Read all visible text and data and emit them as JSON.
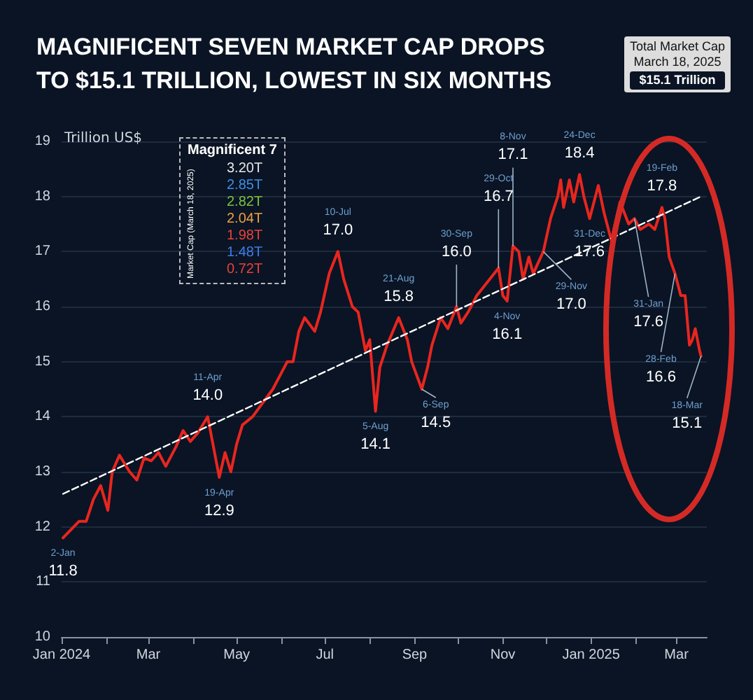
{
  "chart_data": {
    "type": "line",
    "title": "MAGNIFICENT SEVEN MARKET CAP DROPS\nTO $15.1 TRILLION, LOWEST IN SIX MONTHS",
    "ylabel": "Trillion US$",
    "xlim": [
      "2024-01-01",
      "2025-03-22"
    ],
    "xticks": [
      {
        "value": "2024-01-01",
        "label": "Jan 2024"
      },
      {
        "value": "2024-02-01",
        "label": null
      },
      {
        "value": "2024-03-01",
        "label": "Mar"
      },
      {
        "value": "2024-04-01",
        "label": null
      },
      {
        "value": "2024-05-01",
        "label": "May"
      },
      {
        "value": "2024-06-01",
        "label": null
      },
      {
        "value": "2024-07-01",
        "label": "Jul"
      },
      {
        "value": "2024-08-01",
        "label": null
      },
      {
        "value": "2024-09-01",
        "label": "Sep"
      },
      {
        "value": "2024-10-01",
        "label": null
      },
      {
        "value": "2024-11-01",
        "label": "Nov"
      },
      {
        "value": "2024-12-01",
        "label": null
      },
      {
        "value": "2025-01-01",
        "label": "Jan 2025"
      },
      {
        "value": "2025-02-01",
        "label": null
      },
      {
        "value": "2025-03-01",
        "label": "Mar"
      }
    ],
    "ylim": [
      10,
      19
    ],
    "yticks": [
      10,
      11,
      12,
      13,
      14,
      15,
      16,
      17,
      18,
      19
    ],
    "grid": "y",
    "marker": "none",
    "series": [
      {
        "color": "#e8261f",
        "line_style": "solid",
        "x": [
          "2024-01-02",
          "2024-01-13",
          "2024-01-18",
          "2024-01-23",
          "2024-01-28",
          "2024-02-02",
          "2024-02-05",
          "2024-02-10",
          "2024-02-17",
          "2024-02-22",
          "2024-02-27",
          "2024-03-03",
          "2024-03-08",
          "2024-03-13",
          "2024-03-20",
          "2024-03-25",
          "2024-03-30",
          "2024-04-04",
          "2024-04-11",
          "2024-04-19",
          "2024-04-23",
          "2024-04-27",
          "2024-05-01",
          "2024-05-05",
          "2024-05-12",
          "2024-05-19",
          "2024-05-26",
          "2024-05-31",
          "2024-06-05",
          "2024-06-09",
          "2024-06-13",
          "2024-06-17",
          "2024-06-24",
          "2024-06-28",
          "2024-07-04",
          "2024-07-10",
          "2024-07-14",
          "2024-07-20",
          "2024-07-24",
          "2024-07-29",
          "2024-08-01",
          "2024-08-05",
          "2024-08-08",
          "2024-08-13",
          "2024-08-21",
          "2024-08-27",
          "2024-08-30",
          "2024-09-06",
          "2024-09-10",
          "2024-09-13",
          "2024-09-19",
          "2024-09-24",
          "2024-09-30",
          "2024-10-03",
          "2024-10-08",
          "2024-10-14",
          "2024-10-20",
          "2024-10-29",
          "2024-11-01",
          "2024-11-04",
          "2024-11-08",
          "2024-11-12",
          "2024-11-15",
          "2024-11-19",
          "2024-11-22",
          "2024-11-29",
          "2024-12-04",
          "2024-12-09",
          "2024-12-11",
          "2024-12-13",
          "2024-12-17",
          "2024-12-20",
          "2024-12-24",
          "2024-12-27",
          "2024-12-31",
          "2025-01-06",
          "2025-01-10",
          "2025-01-15",
          "2025-01-21",
          "2025-01-27",
          "2025-01-31",
          "2025-02-04",
          "2025-02-10",
          "2025-02-14",
          "2025-02-19",
          "2025-02-21",
          "2025-02-24",
          "2025-02-28",
          "2025-03-04",
          "2025-03-07",
          "2025-03-10",
          "2025-03-12",
          "2025-03-14",
          "2025-03-17",
          "2025-03-18"
        ],
        "values": [
          11.8,
          12.1,
          12.1,
          12.5,
          12.75,
          12.3,
          13.0,
          13.3,
          13.0,
          12.85,
          13.25,
          13.2,
          13.35,
          13.1,
          13.45,
          13.75,
          13.55,
          13.7,
          14.0,
          12.9,
          13.35,
          13.0,
          13.5,
          13.85,
          14.0,
          14.25,
          14.5,
          14.75,
          15.0,
          15.0,
          15.55,
          15.8,
          15.55,
          15.9,
          16.6,
          17.0,
          16.5,
          16.0,
          15.9,
          15.2,
          15.4,
          14.1,
          14.9,
          15.3,
          15.8,
          15.4,
          15.0,
          14.5,
          14.9,
          15.3,
          15.8,
          15.6,
          16.0,
          15.7,
          15.9,
          16.2,
          16.4,
          16.7,
          16.2,
          16.1,
          17.1,
          17.0,
          16.5,
          16.9,
          16.6,
          17.0,
          17.6,
          18.0,
          18.3,
          17.8,
          18.3,
          17.9,
          18.4,
          18.0,
          17.6,
          18.2,
          17.7,
          17.2,
          17.9,
          17.5,
          17.6,
          17.4,
          17.5,
          17.4,
          17.8,
          17.6,
          16.9,
          16.6,
          16.2,
          16.2,
          15.3,
          15.4,
          15.6,
          15.2,
          15.1
        ]
      },
      {
        "type": "line",
        "color": "#ffffff",
        "line_style": "dashed",
        "x": [
          "2024-01-02",
          "2025-03-18"
        ],
        "values": [
          12.6,
          18.0
        ]
      }
    ],
    "annotations": [
      "Total Market Cap",
      "March 18, 2025",
      "$15.1 Trillion",
      "Magnificent 7",
      "Market Cap (March 18, 2025)",
      "3.20T",
      "2.85T",
      "2.82T",
      "2.04T",
      "1.98T",
      "1.48T",
      "0.72T",
      {
        "text": "2-Jan\n11.8",
        "x": "2024-01-02",
        "y": 11.8
      },
      {
        "text": "11-Apr\n14.0",
        "x": "2024-04-11",
        "y": 14.0
      },
      {
        "text": "19-Apr\n12.9",
        "x": "2024-04-19",
        "y": 12.9
      },
      {
        "text": "10-Jul\n17.0",
        "x": "2024-07-10",
        "y": 17.0
      },
      {
        "text": "5-Aug\n14.1",
        "x": "2024-08-05",
        "y": 14.1
      },
      {
        "text": "21-Aug\n15.8",
        "x": "2024-08-21",
        "y": 15.8
      },
      {
        "text": "6-Sep\n14.5",
        "x": "2024-09-06",
        "y": 14.5
      },
      {
        "text": "30-Sep\n16.0",
        "x": "2024-09-30",
        "y": 16.0
      },
      {
        "text": "29-Oct\n16.7",
        "x": "2024-10-29",
        "y": 16.7
      },
      {
        "text": "4-Nov\n16.1",
        "x": "2024-11-04",
        "y": 16.1
      },
      {
        "text": "8-Nov\n17.1",
        "x": "2024-11-08",
        "y": 17.1
      },
      {
        "text": "29-Nov\n17.0",
        "x": "2024-11-29",
        "y": 17.0
      },
      {
        "text": "24-Dec\n18.4",
        "x": "2024-12-24",
        "y": 18.4
      },
      {
        "text": "31-Dec\n17.6",
        "x": "2024-12-31",
        "y": 17.6
      },
      {
        "text": "31-Jan\n17.6",
        "x": "2025-01-31",
        "y": 17.6
      },
      {
        "text": "19-Feb\n17.8",
        "x": "2025-02-19",
        "y": 17.8
      },
      {
        "text": "28-Feb\n16.6",
        "x": "2025-02-28",
        "y": 16.6
      },
      {
        "text": "18-Mar\n15.1",
        "x": "2025-03-18",
        "y": 15.1
      }
    ]
  }
}
